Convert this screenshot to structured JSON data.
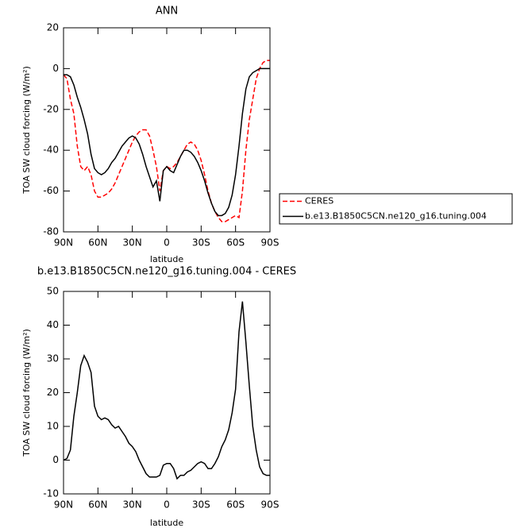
{
  "chart_data": [
    {
      "type": "line",
      "title": "ANN",
      "xlabel": "latitude",
      "ylabel": "TOA SW cloud forcing (W/m²)",
      "x": [
        90,
        87,
        84,
        81,
        78,
        75,
        72,
        69,
        66,
        63,
        60,
        57,
        54,
        51,
        48,
        45,
        42,
        39,
        36,
        33,
        30,
        27,
        24,
        21,
        18,
        15,
        12,
        9,
        6,
        3,
        0,
        -3,
        -6,
        -9,
        -12,
        -15,
        -18,
        -21,
        -24,
        -27,
        -30,
        -33,
        -36,
        -39,
        -42,
        -45,
        -48,
        -51,
        -54,
        -57,
        -60,
        -63,
        -66,
        -69,
        -72,
        -75,
        -78,
        -81,
        -84,
        -87,
        -90
      ],
      "series": [
        {
          "name": "CERES",
          "color": "#ff0000",
          "dashed": true,
          "values": [
            -3,
            -5,
            -15,
            -22,
            -38,
            -48,
            -50,
            -48,
            -52,
            -60,
            -63,
            -63,
            -62,
            -61,
            -59,
            -56,
            -52,
            -48,
            -44,
            -40,
            -36,
            -33,
            -31,
            -30,
            -30,
            -33,
            -40,
            -48,
            -60,
            -50,
            -48,
            -49,
            -48,
            -46,
            -43,
            -40,
            -37,
            -36,
            -37,
            -40,
            -45,
            -52,
            -60,
            -66,
            -70,
            -73,
            -75,
            -75,
            -74,
            -73,
            -72,
            -73,
            -60,
            -40,
            -25,
            -15,
            -5,
            0,
            3,
            4,
            4
          ]
        },
        {
          "name": "b.e13.B1850C5CN.ne120_g16.tuning.004",
          "color": "#000000",
          "dashed": false,
          "values": [
            -3,
            -3,
            -4,
            -8,
            -14,
            -19,
            -25,
            -32,
            -42,
            -49,
            -51,
            -52,
            -51,
            -49,
            -46,
            -44,
            -41,
            -38,
            -36,
            -34,
            -33,
            -34,
            -37,
            -42,
            -48,
            -53,
            -58,
            -55,
            -65,
            -50,
            -48,
            -50,
            -51,
            -47,
            -43,
            -40,
            -40,
            -41,
            -43,
            -46,
            -50,
            -55,
            -61,
            -66,
            -70,
            -72,
            -72,
            -71,
            -68,
            -62,
            -52,
            -38,
            -22,
            -10,
            -4,
            -2,
            -1,
            0,
            0,
            0,
            0
          ]
        }
      ],
      "xlim": [
        90,
        -90
      ],
      "xticks": [
        {
          "value": 90,
          "label": "90N"
        },
        {
          "value": 60,
          "label": "60N"
        },
        {
          "value": 30,
          "label": "30N"
        },
        0,
        {
          "value": -30,
          "label": "30S"
        },
        {
          "value": -60,
          "label": "60S"
        },
        {
          "value": -90,
          "label": "90S"
        }
      ],
      "ylim": [
        -80,
        20
      ],
      "yticks": [
        -80,
        -60,
        -40,
        -20,
        0,
        20
      ],
      "legend": "right"
    },
    {
      "type": "line",
      "title": "b.e13.B1850C5CN.ne120_g16.tuning.004 - CERES",
      "xlabel": "latitude",
      "ylabel": "TOA SW cloud forcing (W/m²)",
      "x": [
        90,
        87,
        84,
        81,
        78,
        75,
        72,
        69,
        66,
        63,
        60,
        57,
        54,
        51,
        48,
        45,
        42,
        39,
        36,
        33,
        30,
        27,
        24,
        21,
        18,
        15,
        12,
        9,
        6,
        3,
        0,
        -3,
        -6,
        -9,
        -12,
        -15,
        -18,
        -21,
        -24,
        -27,
        -30,
        -33,
        -36,
        -39,
        -42,
        -45,
        -48,
        -51,
        -54,
        -57,
        -60,
        -63,
        -66,
        -69,
        -72,
        -75,
        -78,
        -81,
        -84,
        -87,
        -90
      ],
      "series": [
        {
          "color": "#000000",
          "dashed": false,
          "values": [
            0,
            0.5,
            3,
            13,
            20,
            28,
            31,
            29,
            26,
            16,
            13,
            12,
            12.5,
            12,
            10.5,
            9.5,
            10,
            8.5,
            7,
            5,
            4,
            2.5,
            0,
            -2,
            -4,
            -5,
            -5,
            -5,
            -4.5,
            -1.5,
            -1,
            -1,
            -2.5,
            -5.5,
            -4.5,
            -4.5,
            -3.5,
            -3,
            -2,
            -1,
            -0.5,
            -1,
            -2.5,
            -2.5,
            -1,
            1,
            4,
            6,
            9,
            14,
            21,
            38,
            47,
            35,
            22,
            10,
            3,
            -2,
            -4,
            -4.5,
            -4.5
          ]
        }
      ],
      "xlim": [
        90,
        -90
      ],
      "xticks": [
        {
          "value": 90,
          "label": "90N"
        },
        {
          "value": 60,
          "label": "60N"
        },
        {
          "value": 30,
          "label": "30N"
        },
        0,
        {
          "value": -30,
          "label": "30S"
        },
        {
          "value": -60,
          "label": "60S"
        },
        {
          "value": -90,
          "label": "90S"
        }
      ],
      "ylim": [
        -10,
        50
      ],
      "yticks": [
        -10,
        0,
        10,
        20,
        30,
        40,
        50
      ]
    }
  ]
}
